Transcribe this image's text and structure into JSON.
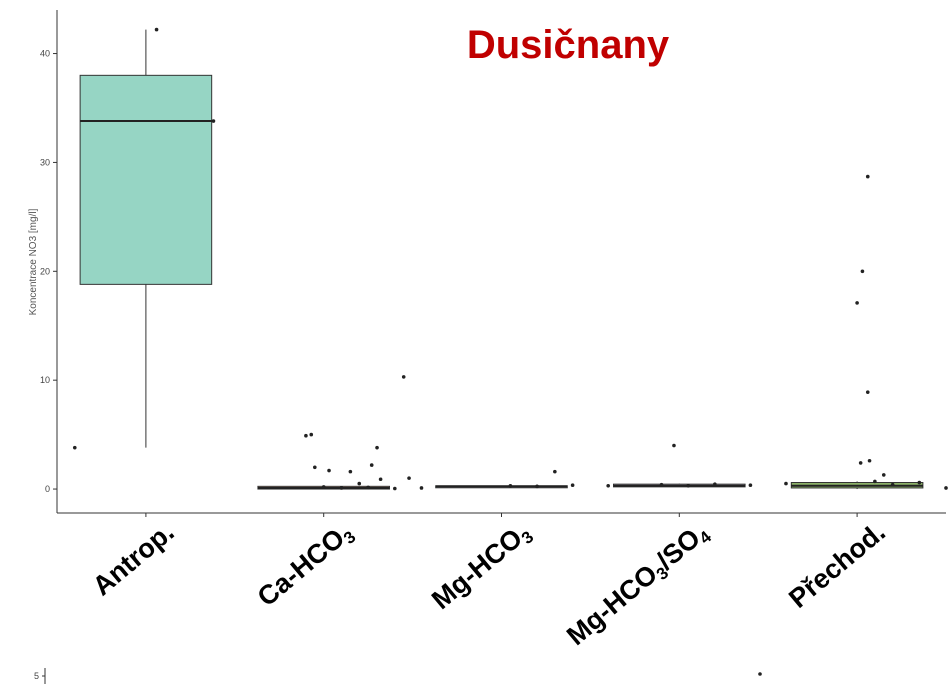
{
  "chart_data": {
    "type": "box",
    "title": "Dusičnany",
    "xlabel": "",
    "ylabel": "Koncentrace NO3 [mg/l]",
    "ylim": [
      -2.2,
      44
    ],
    "yticks": [
      0,
      10,
      20,
      30,
      40
    ],
    "grid": false,
    "categories": [
      {
        "parts": [
          [
            "Antrop.",
            ""
          ]
        ]
      },
      {
        "parts": [
          [
            "Ca-HCO",
            ""
          ],
          [
            "3",
            "sub"
          ]
        ]
      },
      {
        "parts": [
          [
            "Mg-HCO",
            ""
          ],
          [
            "3",
            "sub"
          ]
        ]
      },
      {
        "parts": [
          [
            "Mg-HCO",
            ""
          ],
          [
            "3",
            "sub"
          ],
          [
            "/SO",
            ""
          ],
          [
            "4",
            "sub"
          ]
        ]
      },
      {
        "parts": [
          [
            "Přechod.",
            ""
          ]
        ]
      }
    ],
    "boxes": [
      {
        "q1": 18.8,
        "median": 33.8,
        "q3": 38.0,
        "whisker_low": 3.8,
        "whisker_high": 42.2,
        "color": "#96d5c4"
      },
      {
        "q1": 0.0,
        "median": 0.1,
        "q3": 0.25,
        "whisker_low": 0.0,
        "whisker_high": 0.3,
        "color": "#e8b8a2"
      },
      {
        "q1": 0.2,
        "median": 0.25,
        "q3": 0.3,
        "whisker_low": 0.2,
        "whisker_high": 0.3,
        "color": "#c8ccd8"
      },
      {
        "q1": 0.2,
        "median": 0.3,
        "q3": 0.45,
        "whisker_low": 0.2,
        "whisker_high": 0.5,
        "color": "#d6d2e6"
      },
      {
        "q1": 0.1,
        "median": 0.3,
        "q3": 0.6,
        "whisker_low": 0.0,
        "whisker_high": 0.7,
        "color": "#8db36a"
      }
    ],
    "points": [
      [
        {
          "x": 0.6,
          "y": 3.8
        },
        {
          "x": 1.06,
          "y": 42.2
        },
        {
          "x": 1.38,
          "y": 33.8
        }
      ],
      [
        {
          "x": 1.9,
          "y": 4.9
        },
        {
          "x": 1.93,
          "y": 5.0
        },
        {
          "x": 2.45,
          "y": 10.3
        },
        {
          "x": 2.3,
          "y": 3.8
        },
        {
          "x": 1.95,
          "y": 2.0
        },
        {
          "x": 2.03,
          "y": 1.7
        },
        {
          "x": 2.15,
          "y": 1.6
        },
        {
          "x": 2.27,
          "y": 2.2
        },
        {
          "x": 2.32,
          "y": 0.9
        },
        {
          "x": 2.2,
          "y": 0.5
        },
        {
          "x": 2.48,
          "y": 1.0
        },
        {
          "x": 2.0,
          "y": 0.2
        },
        {
          "x": 2.1,
          "y": 0.1
        },
        {
          "x": 2.25,
          "y": 0.15
        },
        {
          "x": 2.4,
          "y": 0.05
        },
        {
          "x": 2.55,
          "y": 0.1
        }
      ],
      [
        {
          "x": 3.3,
          "y": 1.6
        },
        {
          "x": 3.05,
          "y": 0.3
        },
        {
          "x": 3.2,
          "y": 0.25
        },
        {
          "x": 3.4,
          "y": 0.35
        },
        {
          "x": 3.6,
          "y": 0.3
        }
      ],
      [
        {
          "x": 3.97,
          "y": 4.0
        },
        {
          "x": 3.9,
          "y": 0.4
        },
        {
          "x": 4.05,
          "y": 0.3
        },
        {
          "x": 4.2,
          "y": 0.45
        },
        {
          "x": 4.4,
          "y": 0.35
        },
        {
          "x": 4.6,
          "y": 0.5
        }
      ],
      [
        {
          "x": 5.06,
          "y": 28.7
        },
        {
          "x": 5.03,
          "y": 20.0
        },
        {
          "x": 5.0,
          "y": 17.1
        },
        {
          "x": 5.06,
          "y": 8.9
        },
        {
          "x": 5.02,
          "y": 2.4
        },
        {
          "x": 5.07,
          "y": 2.6
        },
        {
          "x": 5.15,
          "y": 1.3
        },
        {
          "x": 5.1,
          "y": 0.7
        },
        {
          "x": 5.2,
          "y": 0.4
        },
        {
          "x": 5.35,
          "y": 0.6
        },
        {
          "x": 5.5,
          "y": 0.1
        },
        {
          "x": 5.65,
          "y": 0.05
        }
      ]
    ],
    "secondary_ytick": "5"
  }
}
